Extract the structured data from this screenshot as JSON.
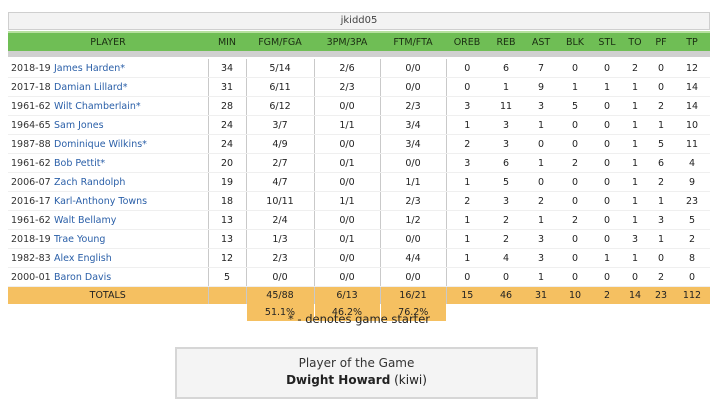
{
  "team": {
    "name": "jkidd05"
  },
  "columns": {
    "player": "PLAYER",
    "min": "MIN",
    "fgm_fga": "FGM/FGA",
    "tpm_tpa": "3PM/3PA",
    "ftm_fta": "FTM/FTA",
    "oreb": "OREB",
    "reb": "REB",
    "ast": "AST",
    "blk": "BLK",
    "stl": "STL",
    "to": "TO",
    "pf": "PF",
    "tp": "TP"
  },
  "rows": [
    {
      "season": "2018-19",
      "name": "James Harden*",
      "min": "34",
      "fg": "5/14",
      "tp3": "2/6",
      "ft": "0/0",
      "oreb": "0",
      "reb": "6",
      "ast": "7",
      "blk": "0",
      "stl": "0",
      "to": "2",
      "pf": "0",
      "tp": "12"
    },
    {
      "season": "2017-18",
      "name": "Damian Lillard*",
      "min": "31",
      "fg": "6/11",
      "tp3": "2/3",
      "ft": "0/0",
      "oreb": "0",
      "reb": "1",
      "ast": "9",
      "blk": "1",
      "stl": "1",
      "to": "1",
      "pf": "0",
      "tp": "14"
    },
    {
      "season": "1961-62",
      "name": "Wilt Chamberlain*",
      "min": "28",
      "fg": "6/12",
      "tp3": "0/0",
      "ft": "2/3",
      "oreb": "3",
      "reb": "11",
      "ast": "3",
      "blk": "5",
      "stl": "0",
      "to": "1",
      "pf": "2",
      "tp": "14"
    },
    {
      "season": "1964-65",
      "name": "Sam Jones",
      "min": "24",
      "fg": "3/7",
      "tp3": "1/1",
      "ft": "3/4",
      "oreb": "1",
      "reb": "3",
      "ast": "1",
      "blk": "0",
      "stl": "0",
      "to": "1",
      "pf": "1",
      "tp": "10"
    },
    {
      "season": "1987-88",
      "name": "Dominique Wilkins*",
      "min": "24",
      "fg": "4/9",
      "tp3": "0/0",
      "ft": "3/4",
      "oreb": "2",
      "reb": "3",
      "ast": "0",
      "blk": "0",
      "stl": "0",
      "to": "1",
      "pf": "5",
      "tp": "11"
    },
    {
      "season": "1961-62",
      "name": "Bob Pettit*",
      "min": "20",
      "fg": "2/7",
      "tp3": "0/1",
      "ft": "0/0",
      "oreb": "3",
      "reb": "6",
      "ast": "1",
      "blk": "2",
      "stl": "0",
      "to": "1",
      "pf": "6",
      "tp": "4"
    },
    {
      "season": "2006-07",
      "name": "Zach Randolph",
      "min": "19",
      "fg": "4/7",
      "tp3": "0/0",
      "ft": "1/1",
      "oreb": "1",
      "reb": "5",
      "ast": "0",
      "blk": "0",
      "stl": "0",
      "to": "1",
      "pf": "2",
      "tp": "9"
    },
    {
      "season": "2016-17",
      "name": "Karl-Anthony Towns",
      "min": "18",
      "fg": "10/11",
      "tp3": "1/1",
      "ft": "2/3",
      "oreb": "2",
      "reb": "3",
      "ast": "2",
      "blk": "0",
      "stl": "0",
      "to": "1",
      "pf": "1",
      "tp": "23"
    },
    {
      "season": "1961-62",
      "name": "Walt Bellamy",
      "min": "13",
      "fg": "2/4",
      "tp3": "0/0",
      "ft": "1/2",
      "oreb": "1",
      "reb": "2",
      "ast": "1",
      "blk": "2",
      "stl": "0",
      "to": "1",
      "pf": "3",
      "tp": "5"
    },
    {
      "season": "2018-19",
      "name": "Trae Young",
      "min": "13",
      "fg": "1/3",
      "tp3": "0/1",
      "ft": "0/0",
      "oreb": "1",
      "reb": "2",
      "ast": "3",
      "blk": "0",
      "stl": "0",
      "to": "3",
      "pf": "1",
      "tp": "2"
    },
    {
      "season": "1982-83",
      "name": "Alex English",
      "min": "12",
      "fg": "2/3",
      "tp3": "0/0",
      "ft": "4/4",
      "oreb": "1",
      "reb": "4",
      "ast": "3",
      "blk": "0",
      "stl": "1",
      "to": "1",
      "pf": "0",
      "tp": "8"
    },
    {
      "season": "2000-01",
      "name": "Baron Davis",
      "min": "5",
      "fg": "0/0",
      "tp3": "0/0",
      "ft": "0/0",
      "oreb": "0",
      "reb": "0",
      "ast": "1",
      "blk": "0",
      "stl": "0",
      "to": "0",
      "pf": "2",
      "tp": "0"
    }
  ],
  "totals": {
    "label": "TOTALS",
    "fg": "45/88",
    "tp3": "6/13",
    "ft": "16/21",
    "oreb": "15",
    "reb": "46",
    "ast": "31",
    "blk": "10",
    "stl": "2",
    "to": "14",
    "pf": "23",
    "tp": "112",
    "fg_pct": "51.1%",
    "tp3_pct": "46.2%",
    "ft_pct": "76.2%"
  },
  "footnote": "* - denotes game starter",
  "player_of_game": {
    "title": "Player of the Game",
    "name": "Dwight Howard",
    "owner": "(kiwi)"
  }
}
